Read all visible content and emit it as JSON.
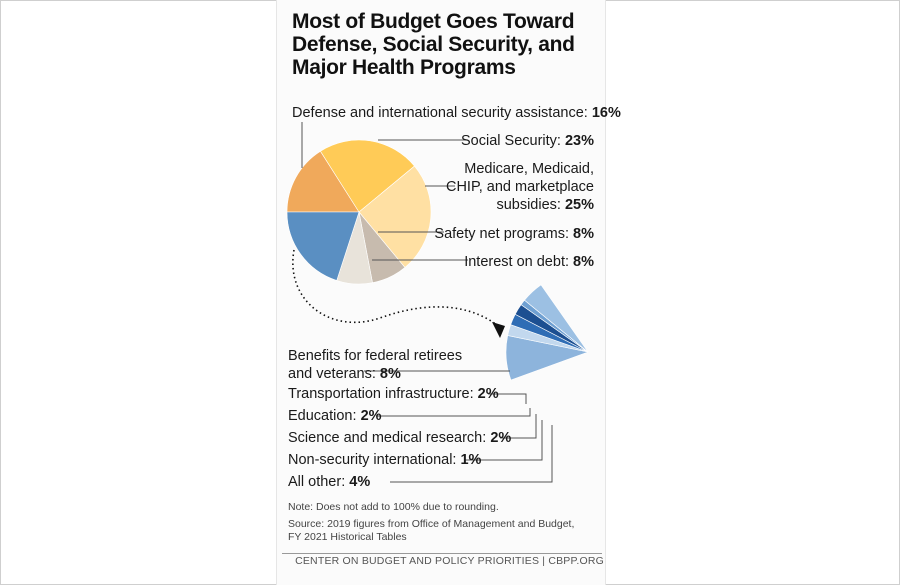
{
  "chart_data": [
    {
      "type": "pie",
      "title": "Most of Budget Goes Toward Defense, Social Security, and Major Health Programs",
      "slices": [
        {
          "label": "Defense and international security assistance: ",
          "pct": "16%",
          "value": 16,
          "color": "#F0A95B"
        },
        {
          "label": "Social Security: ",
          "pct": "23%",
          "value": 23,
          "color": "#FFCB57"
        },
        {
          "label_lines": [
            "Medicare, Medicaid,",
            "CHIP, and marketplace",
            "subsidies: "
          ],
          "pct": "25%",
          "value": 25,
          "color": "#FFE0A3"
        },
        {
          "label": "Safety net programs: ",
          "pct": "8%",
          "value": 8,
          "color": "#C7BBAE"
        },
        {
          "label": "Interest on debt: ",
          "pct": "8%",
          "value": 8,
          "color": "#E8E3DA"
        },
        {
          "label": "",
          "pct": "",
          "value": 20,
          "color": "#5A8FC2"
        }
      ]
    },
    {
      "type": "pie",
      "slices": [
        {
          "label_lines": [
            "Benefits for federal retirees",
            "and veterans: "
          ],
          "pct": "8%",
          "value": 8,
          "color": "#8DB4DC"
        },
        {
          "label": "Transportation infrastructure: ",
          "pct": "2%",
          "value": 2,
          "color": "#C2D8EE"
        },
        {
          "label": "Education: ",
          "pct": "2%",
          "value": 2,
          "color": "#2F6DB5"
        },
        {
          "label": "Science and medical research: ",
          "pct": "2%",
          "value": 2,
          "color": "#1C4F91"
        },
        {
          "label": "Non-security international: ",
          "pct": "1%",
          "value": 1,
          "color": "#6FA0D2"
        },
        {
          "label": "All other: ",
          "pct": "4%",
          "value": 4,
          "color": "#9CC0E3"
        }
      ]
    }
  ],
  "notes": {
    "note": "Note: Does not add to 100% due to rounding.",
    "source": "Source: 2019 figures from Office of Management and Budget, FY 2021 Historical Tables",
    "footer": "CENTER ON BUDGET AND POLICY PRIORITIES | CBPP.ORG"
  },
  "colors": {
    "leader": "#555555",
    "arrow": "#111111"
  }
}
